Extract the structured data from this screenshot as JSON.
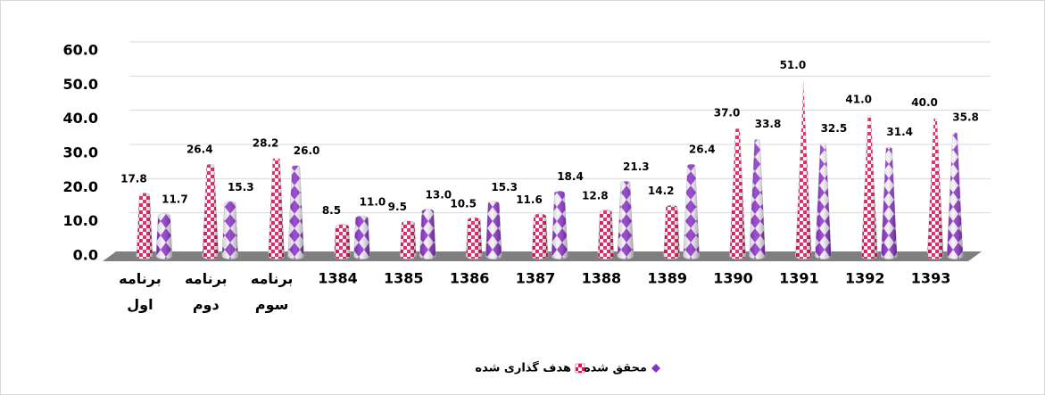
{
  "chart_data": {
    "type": "bar",
    "categories": [
      "برنامه اول",
      "برنامه دوم",
      "برنامه سوم",
      "1384",
      "1385",
      "1386",
      "1387",
      "1388",
      "1389",
      "1390",
      "1391",
      "1392",
      "1393"
    ],
    "series": [
      {
        "name": "هدف گذاری شده",
        "color": "#e0115f",
        "values": [
          17.8,
          26.4,
          28.2,
          8.5,
          9.5,
          10.5,
          11.6,
          12.8,
          14.2,
          37.0,
          51.0,
          41.0,
          40.0
        ],
        "value_labels": [
          "17.8",
          "26.4",
          "28.2",
          "8.5",
          "9.5",
          "10.5",
          "11.6",
          "12.8",
          "14.2",
          "37.0",
          "51.0",
          "41.0",
          "40.0"
        ]
      },
      {
        "name": "محقق شده",
        "color": "#8b2fc9",
        "values": [
          11.7,
          15.3,
          26.0,
          11.0,
          13.0,
          15.3,
          18.4,
          21.3,
          26.4,
          33.8,
          32.5,
          31.4,
          35.8
        ],
        "value_labels": [
          "11.7",
          "15.3",
          "26.0",
          "11.0",
          "13.0",
          "15.3",
          "18.4",
          "21.3",
          "26.4",
          "33.8",
          "32.5",
          "31.4",
          "35.8"
        ]
      }
    ],
    "ylim": [
      0,
      60
    ],
    "yticks": [
      {
        "value": 0,
        "label": "0.0"
      },
      {
        "value": 10,
        "label": "10.0"
      },
      {
        "value": 20,
        "label": "20.0"
      },
      {
        "value": 30,
        "label": "30.0"
      },
      {
        "value": 40,
        "label": "40.0"
      },
      {
        "value": 50,
        "label": "50.0"
      },
      {
        "value": 60,
        "label": "60.0"
      }
    ],
    "grid": true
  }
}
